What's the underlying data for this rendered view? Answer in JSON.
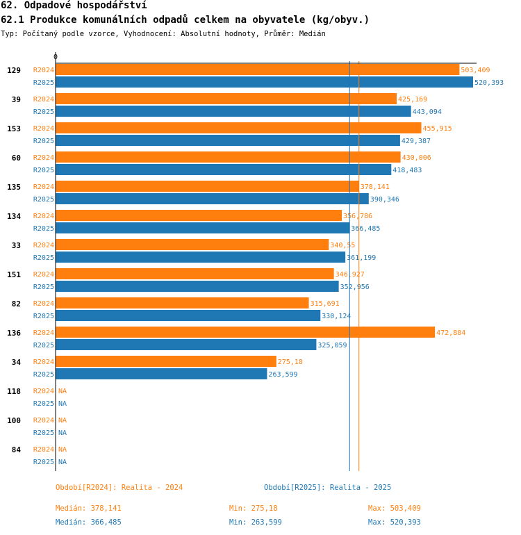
{
  "header": {
    "title": "62. Odpadové hospodářství",
    "subtitle": "62.1 Produkce komunálních odpadů celkem na obyvatele (kg/obyv.)",
    "meta": "Typ: Počítaný podle vzorce, Vyhodnocení: Absolutní hodnoty, Průměr: Medián"
  },
  "chart_data": {
    "type": "bar",
    "orientation": "horizontal",
    "axis_zero_label": "0",
    "xlim": [
      0,
      520.393
    ],
    "categories": [
      "129",
      "39",
      "153",
      "60",
      "135",
      "134",
      "33",
      "151",
      "82",
      "136",
      "34",
      "118",
      "100",
      "84"
    ],
    "series": [
      {
        "name": "R2024",
        "color": "#ff7f0e",
        "values": [
          503.409,
          425.169,
          455.915,
          430.006,
          378.141,
          356.786,
          340.55,
          346.927,
          315.691,
          472.884,
          275.18,
          null,
          null,
          null
        ],
        "labels": [
          "503,409",
          "425,169",
          "455,915",
          "430,006",
          "378,141",
          "356,786",
          "340,55",
          "346,927",
          "315,691",
          "472,884",
          "275,18",
          "NA",
          "NA",
          "NA"
        ]
      },
      {
        "name": "R2025",
        "color": "#1f77b4",
        "values": [
          520.393,
          443.094,
          429.387,
          418.483,
          390.346,
          366.485,
          361.199,
          352.956,
          330.124,
          325.059,
          263.599,
          null,
          null,
          null
        ],
        "labels": [
          "520,393",
          "443,094",
          "429,387",
          "418,483",
          "390,346",
          "366,485",
          "361,199",
          "352,956",
          "330,124",
          "325,059",
          "263,599",
          "NA",
          "NA",
          "NA"
        ]
      }
    ],
    "reference_lines": [
      {
        "series": "R2024",
        "kind": "median",
        "value": 378.141,
        "color": "#ff7f0e"
      },
      {
        "series": "R2025",
        "kind": "median",
        "value": 366.485,
        "color": "#1f77b4"
      }
    ]
  },
  "legend": {
    "period_r2024": "Období[R2024]: Realita - 2024",
    "period_r2025": "Období[R2025]: Realita - 2025"
  },
  "stats": {
    "r2024": {
      "median": "Medián: 378,141",
      "min": "Min: 275,18",
      "max": "Max: 503,409"
    },
    "r2025": {
      "median": "Medián: 366,485",
      "min": "Min: 263,599",
      "max": "Max: 520,393"
    }
  },
  "colors": {
    "r2024": "#ff7f0e",
    "r2025": "#1f77b4",
    "axis": "#000000"
  }
}
